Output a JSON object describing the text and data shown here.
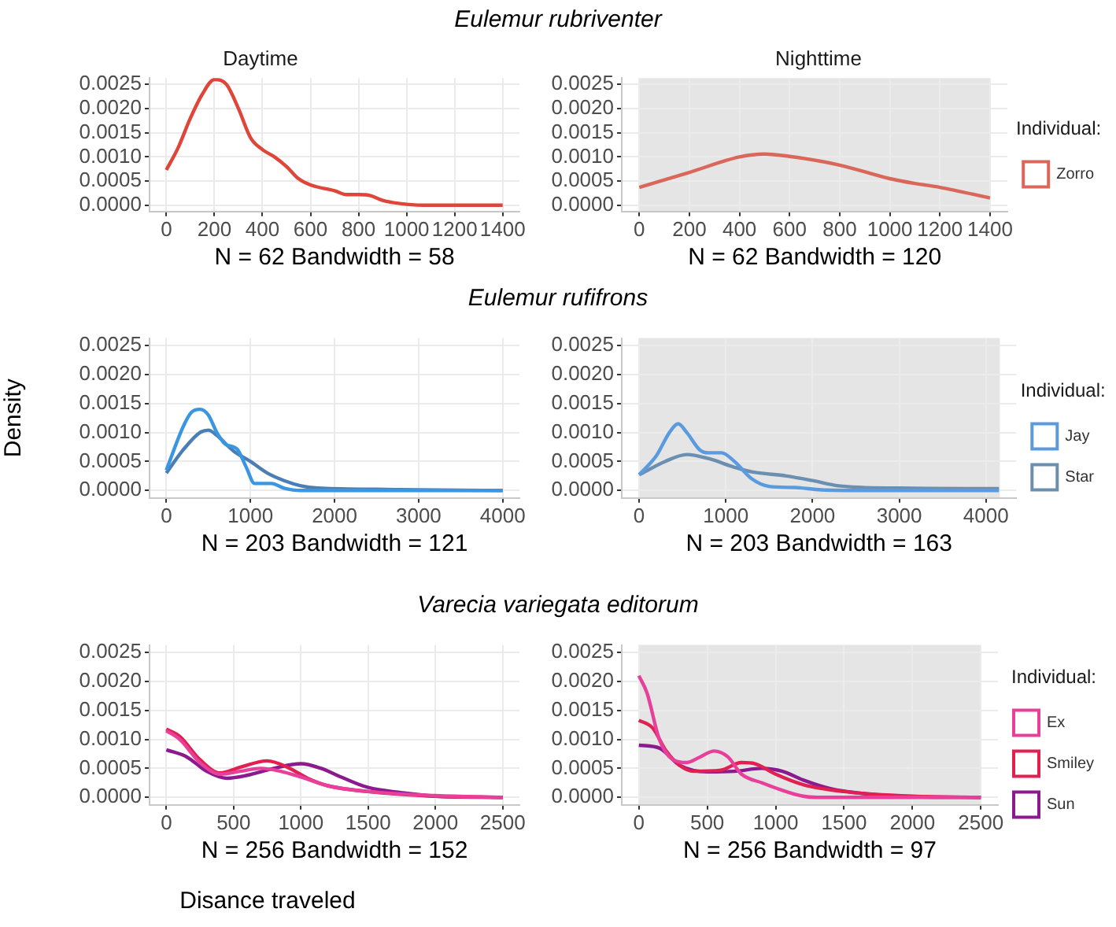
{
  "chart_data": [
    {
      "type": "line",
      "title": "Daytime",
      "xlabel": "N = 62 Bandwidth = 58",
      "annotations": [
        "Eulemur rubriventer"
      ],
      "grid": true,
      "xlim": [
        -70,
        1470
      ],
      "xticks": [
        0,
        200,
        400,
        600,
        800,
        1000,
        1200,
        1400
      ],
      "ylim": [
        -0.00013,
        0.00263
      ],
      "yticks": [
        {
          "value": 0,
          "label": "0.0000"
        },
        {
          "value": 0.0005,
          "label": "0.0005"
        },
        {
          "value": 0.001,
          "label": "0.0010"
        },
        {
          "value": 0.0015,
          "label": "0.0015"
        },
        {
          "value": 0.002,
          "label": "0.0020"
        },
        {
          "value": 0.0025,
          "label": "0.0025"
        }
      ],
      "series": [
        {
          "color": "#e0453a",
          "x": [
            0,
            50,
            100,
            150,
            200,
            250,
            300,
            350,
            400,
            450,
            500,
            550,
            600,
            700,
            750,
            800,
            850,
            900,
            1000,
            1100,
            1400
          ],
          "values": [
            0.00073,
            0.0012,
            0.0018,
            0.0023,
            0.0026,
            0.0025,
            0.002,
            0.0014,
            0.00115,
            0.001,
            0.0008,
            0.00055,
            0.00042,
            0.0003,
            0.00022,
            0.00022,
            0.0002,
            0.0001,
            2e-05,
            0,
            0
          ]
        }
      ]
    },
    {
      "type": "line",
      "title": "Nighttime",
      "xlabel": "N = 62 Bandwidth = 120",
      "grid": true,
      "legend": "right",
      "legend_title": "Individual:",
      "xlim": [
        -70,
        1470
      ],
      "xticks": [
        0,
        200,
        400,
        600,
        800,
        1000,
        1200,
        1400
      ],
      "ylim": [
        -0.00013,
        0.00263
      ],
      "yticks": [
        {
          "value": 0,
          "label": "0.0000"
        },
        {
          "value": 0.0005,
          "label": "0.0005"
        },
        {
          "value": 0.001,
          "label": "0.0010"
        },
        {
          "value": 0.0015,
          "label": "0.0015"
        },
        {
          "value": 0.002,
          "label": "0.0020"
        },
        {
          "value": 0.0025,
          "label": "0.0025"
        }
      ],
      "bands": [
        {
          "axis": "x",
          "from": 0,
          "to": 1400,
          "color": "#e5e5e5"
        }
      ],
      "series": [
        {
          "name": "Zorro",
          "color": "#d9675a",
          "x": [
            0,
            200,
            400,
            500,
            600,
            800,
            1000,
            1100,
            1200,
            1400
          ],
          "values": [
            0.00037,
            0.00068,
            0.001,
            0.00106,
            0.00101,
            0.00083,
            0.00055,
            0.00045,
            0.00037,
            0.00015
          ]
        }
      ]
    },
    {
      "type": "line",
      "xlabel": "N = 203 Bandwidth = 121",
      "ylabel": "Density",
      "annotations": [
        "Eulemur rufifrons"
      ],
      "grid": true,
      "xlim": [
        -200,
        4200
      ],
      "xticks": [
        0,
        1000,
        2000,
        3000,
        4000
      ],
      "ylim": [
        -0.00013,
        0.00263
      ],
      "yticks": [
        {
          "value": 0,
          "label": "0.0000"
        },
        {
          "value": 0.0005,
          "label": "0.0005"
        },
        {
          "value": 0.001,
          "label": "0.0010"
        },
        {
          "value": 0.0015,
          "label": "0.0015"
        },
        {
          "value": 0.002,
          "label": "0.0020"
        },
        {
          "value": 0.0025,
          "label": "0.0025"
        }
      ],
      "series": [
        {
          "color": "#3a96e0",
          "x": [
            0,
            200,
            300,
            400,
            500,
            600,
            700,
            800,
            850,
            950,
            1050,
            1150,
            1250,
            1400,
            1600,
            4000
          ],
          "values": [
            0.00035,
            0.0011,
            0.00135,
            0.0014,
            0.0013,
            0.001,
            0.0008,
            0.00075,
            0.0007,
            0.0004,
            0.00012,
            0.00012,
            0.00012,
            4e-05,
            0,
            0
          ]
        },
        {
          "color": "#4a7fb5",
          "x": [
            0,
            200,
            400,
            500,
            600,
            800,
            1000,
            1200,
            1400,
            1600,
            1800,
            2500,
            3000,
            4000
          ],
          "values": [
            0.0003,
            0.0007,
            0.001,
            0.00104,
            0.00095,
            0.00068,
            0.0005,
            0.0003,
            0.00017,
            8e-05,
            4e-05,
            2e-05,
            1e-05,
            0
          ]
        }
      ]
    },
    {
      "type": "line",
      "xlabel": "N = 203 Bandwidth = 163",
      "grid": true,
      "legend": "right",
      "legend_title": "Individual:",
      "xlim": [
        -200,
        4350
      ],
      "xticks": [
        0,
        1000,
        2000,
        3000,
        4000
      ],
      "ylim": [
        -0.00013,
        0.00263
      ],
      "yticks": [
        {
          "value": 0,
          "label": "0.0000"
        },
        {
          "value": 0.0005,
          "label": "0.0005"
        },
        {
          "value": 0.001,
          "label": "0.0010"
        },
        {
          "value": 0.0015,
          "label": "0.0015"
        },
        {
          "value": 0.002,
          "label": "0.0020"
        },
        {
          "value": 0.0025,
          "label": "0.0025"
        }
      ],
      "bands": [
        {
          "axis": "x",
          "from": 0,
          "to": 4160,
          "color": "#e5e5e5"
        }
      ],
      "series": [
        {
          "name": "Jay",
          "color": "#5a9be0",
          "x": [
            0,
            200,
            350,
            450,
            550,
            700,
            800,
            950,
            1100,
            1300,
            1500,
            1800,
            2100,
            2600,
            4150
          ],
          "values": [
            0.00027,
            0.0006,
            0.001,
            0.00115,
            0.001,
            0.0007,
            0.00065,
            0.00065,
            0.0005,
            0.0002,
            7e-05,
            5e-05,
            1e-05,
            0,
            0
          ]
        },
        {
          "name": "Star",
          "color": "#6a8fb0",
          "x": [
            0,
            300,
            550,
            800,
            1100,
            1300,
            1700,
            2000,
            2300,
            3000,
            4150
          ],
          "values": [
            0.00027,
            0.0005,
            0.00062,
            0.00055,
            0.0004,
            0.00032,
            0.00025,
            0.00017,
            8e-05,
            4e-05,
            3e-05
          ]
        }
      ]
    },
    {
      "type": "line",
      "xlabel": "N = 256 Bandwidth = 152",
      "annotations": [
        "Varecia variegata editorum",
        "Disance traveled"
      ],
      "grid": true,
      "xlim": [
        -125,
        2625
      ],
      "xticks": [
        0,
        500,
        1000,
        1500,
        2000,
        2500
      ],
      "ylim": [
        -0.00013,
        0.00263
      ],
      "yticks": [
        {
          "value": 0,
          "label": "0.0000"
        },
        {
          "value": 0.0005,
          "label": "0.0005"
        },
        {
          "value": 0.001,
          "label": "0.0010"
        },
        {
          "value": 0.0015,
          "label": "0.0015"
        },
        {
          "value": 0.002,
          "label": "0.0020"
        },
        {
          "value": 0.0025,
          "label": "0.0025"
        }
      ],
      "series": [
        {
          "color": "#e8409a",
          "x": [
            0,
            100,
            250,
            400,
            550,
            700,
            850,
            1000,
            1200,
            1500,
            2000,
            2500
          ],
          "values": [
            0.00115,
            0.001,
            0.0006,
            0.0004,
            0.00045,
            0.0005,
            0.00045,
            0.00035,
            0.0002,
            0.0001,
            3e-05,
            0
          ]
        },
        {
          "color": "#e02050",
          "x": [
            0,
            100,
            250,
            400,
            550,
            750,
            900,
            1050,
            1200,
            1500,
            2000,
            2500
          ],
          "values": [
            0.00118,
            0.00105,
            0.00065,
            0.00042,
            0.00052,
            0.00063,
            0.00052,
            0.00033,
            0.0002,
            0.0001,
            2e-05,
            0
          ]
        },
        {
          "color": "#8b1a8f",
          "x": [
            0,
            150,
            300,
            450,
            600,
            800,
            1000,
            1150,
            1300,
            1500,
            1750,
            2000,
            2500
          ],
          "values": [
            0.00082,
            0.0007,
            0.00045,
            0.00033,
            0.00038,
            0.0005,
            0.00058,
            0.0005,
            0.00035,
            0.00017,
            8e-05,
            2e-05,
            0
          ]
        }
      ]
    },
    {
      "type": "line",
      "xlabel": "N = 256 Bandwidth = 97",
      "grid": true,
      "legend": "right",
      "legend_title": "Individual:",
      "xlim": [
        -125,
        2625
      ],
      "xticks": [
        0,
        500,
        1000,
        1500,
        2000,
        2500
      ],
      "ylim": [
        -0.00013,
        0.00263
      ],
      "yticks": [
        {
          "value": 0,
          "label": "0.0000"
        },
        {
          "value": 0.0005,
          "label": "0.0005"
        },
        {
          "value": 0.001,
          "label": "0.0010"
        },
        {
          "value": 0.0015,
          "label": "0.0015"
        },
        {
          "value": 0.002,
          "label": "0.0020"
        },
        {
          "value": 0.0025,
          "label": "0.0025"
        }
      ],
      "bands": [
        {
          "axis": "x",
          "from": 0,
          "to": 2500,
          "color": "#e5e5e5"
        }
      ],
      "series": [
        {
          "name": "Ex",
          "color": "#e8409a",
          "x": [
            0,
            60,
            150,
            250,
            350,
            450,
            550,
            650,
            750,
            900,
            1050,
            1200,
            1300,
            2500
          ],
          "values": [
            0.0021,
            0.0018,
            0.001,
            0.00065,
            0.0006,
            0.0007,
            0.0008,
            0.0007,
            0.0004,
            0.00025,
            0.00012,
            2e-05,
            0,
            0
          ]
        },
        {
          "name": "Smiley",
          "color": "#e02050",
          "x": [
            0,
            100,
            200,
            300,
            400,
            600,
            750,
            850,
            1000,
            1200,
            1500,
            2000,
            2500
          ],
          "values": [
            0.00133,
            0.0012,
            0.0008,
            0.00055,
            0.00045,
            0.00047,
            0.0006,
            0.00058,
            0.0004,
            0.00022,
            0.0001,
            2e-05,
            0
          ]
        },
        {
          "name": "Sun",
          "color": "#8b1a8f",
          "x": [
            0,
            150,
            300,
            500,
            700,
            900,
            1050,
            1200,
            1400,
            1700,
            2000,
            2500
          ],
          "values": [
            0.0009,
            0.00085,
            0.00055,
            0.00044,
            0.00045,
            0.0005,
            0.00045,
            0.0003,
            0.00015,
            5e-05,
            1e-05,
            0
          ]
        }
      ]
    }
  ]
}
